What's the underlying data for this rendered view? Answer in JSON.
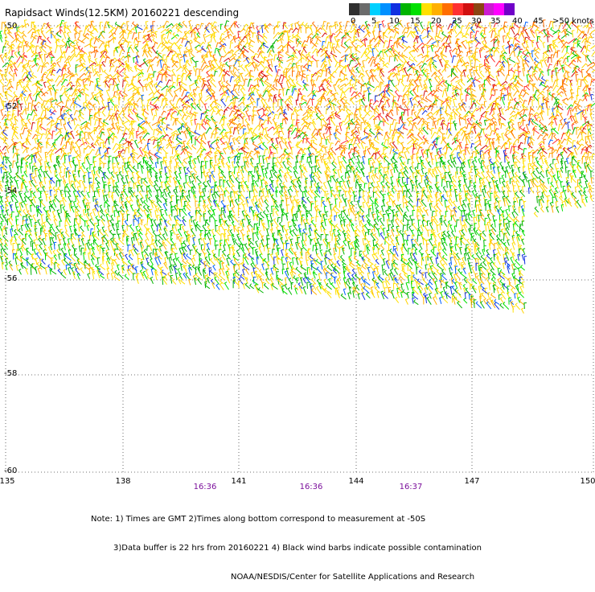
{
  "title": "Rapidsact Winds(12.5KM) 20160221 descending",
  "legend": {
    "colors": [
      "#303030",
      "#6b6b6b",
      "#00d0ff",
      "#0090ff",
      "#1030e0",
      "#00b400",
      "#00e000",
      "#ffe000",
      "#ffb000",
      "#ff6e00",
      "#ff3030",
      "#d01010",
      "#8b4513",
      "#cc1cd0",
      "#ff00ff",
      "#7000c8"
    ],
    "labels": [
      "0",
      "5",
      "10",
      "15",
      "20",
      "25",
      "30",
      "35",
      "40",
      "45",
      ">50 knots"
    ]
  },
  "axes": {
    "lat_labels": [
      "-50",
      "-52",
      "-54",
      "-56",
      "-58",
      "-60"
    ],
    "lon_labels": [
      "135",
      "138",
      "141",
      "144",
      "147",
      "150"
    ]
  },
  "times": [
    "16:36",
    "16:36",
    "16:37"
  ],
  "notes": {
    "line1": "Note: 1) Times are GMT 2)Times along bottom correspond to measurement at -50S",
    "line2": "3)Data buffer is 22 hrs from 20160221 4) Black wind barbs indicate possible contamination",
    "line3": "NOAA/NESDIS/Center for Satellite Applications and Research"
  }
}
